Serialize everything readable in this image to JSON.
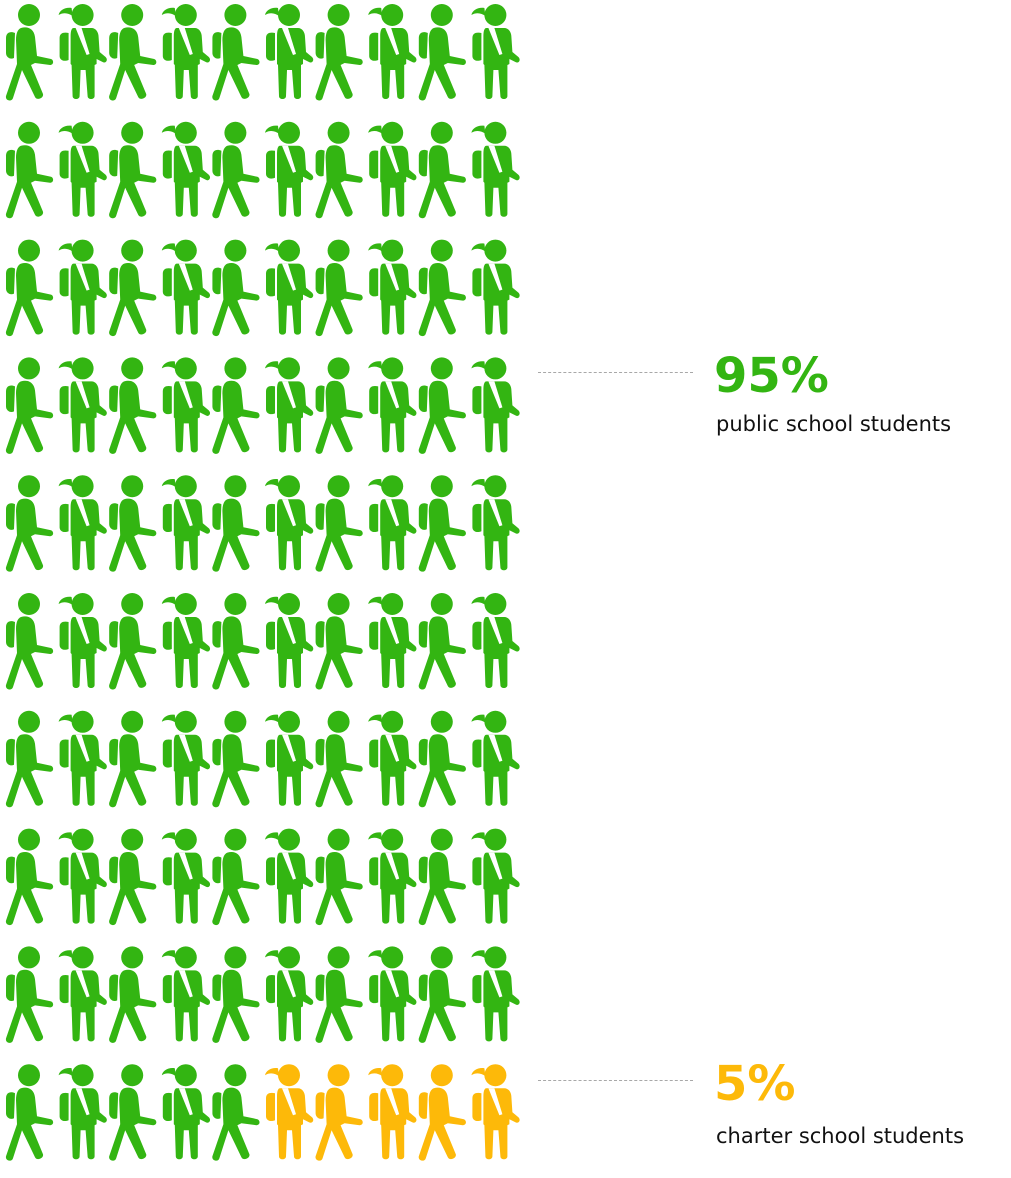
{
  "colors": {
    "public": "#33b512",
    "charter": "#fdb909"
  },
  "icons": [
    "boy-student-icon",
    "girl-student-icon"
  ],
  "chart_data": {
    "type": "pictogram",
    "title": "",
    "grid": {
      "rows": 10,
      "columns": 10,
      "total": 100
    },
    "series": [
      {
        "name": "public school students",
        "value": 95,
        "percent_label": "95%",
        "color": "#33b512"
      },
      {
        "name": "charter school students",
        "value": 5,
        "percent_label": "5%",
        "color": "#fdb909"
      }
    ],
    "legend_placement": "right"
  }
}
